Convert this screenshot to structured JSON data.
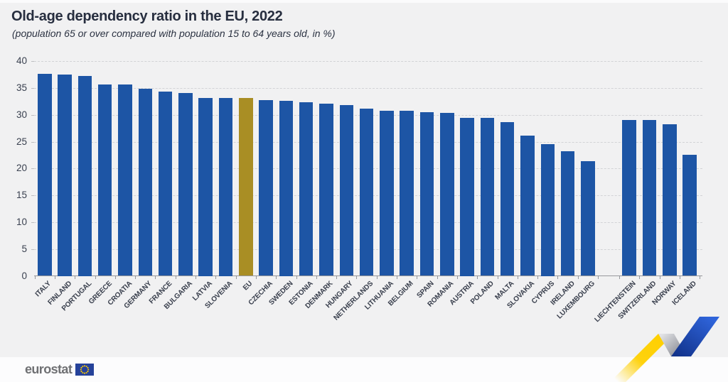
{
  "header": {
    "title": "Old-age dependency ratio in the EU, 2022",
    "subtitle": "(population 65 or over compared with population 15 to 64 years old, in %)"
  },
  "chart_data": {
    "type": "bar",
    "title": "Old-age dependency ratio in the EU, 2022",
    "subtitle": "(population 65 or over compared with population 15 to 64 years old, in %)",
    "unit": "%",
    "ylim": [
      0,
      40
    ],
    "yticks": [
      0,
      5,
      10,
      15,
      20,
      25,
      30,
      35,
      40
    ],
    "grid": "horizontal-dashed",
    "legend": "none",
    "bar_color": "#1d55a5",
    "highlight": {
      "category": "EU",
      "color": "#a98e24"
    },
    "layout": {
      "gap_after_index": 27
    },
    "categories": [
      "ITALY",
      "FINLAND",
      "PORTUGAL",
      "GREECE",
      "CROATIA",
      "GERMANY",
      "FRANCE",
      "BULGARIA",
      "LATVIA",
      "SLOVENIA",
      "EU",
      "CZECHIA",
      "SWEDEN",
      "ESTONIA",
      "DENMARK",
      "HUNGARY",
      "NETHERLANDS",
      "LITHUANIA",
      "BELGIUM",
      "SPAIN",
      "ROMANIA",
      "AUSTRIA",
      "POLAND",
      "MALTA",
      "SLOVAKIA",
      "CYPRUS",
      "IRELAND",
      "LUXEMBOURG",
      "LIECHTENSTEIN",
      "SWITZERLAND",
      "NORWAY",
      "ICELAND"
    ],
    "values": [
      37.6,
      37.5,
      37.3,
      35.7,
      35.6,
      34.9,
      34.3,
      34.1,
      33.2,
      33.2,
      33.1,
      32.7,
      32.6,
      32.3,
      32.1,
      31.8,
      31.2,
      30.8,
      30.7,
      30.5,
      30.4,
      29.5,
      29.4,
      28.6,
      26.1,
      24.6,
      23.2,
      21.4,
      29.0,
      29.0,
      28.2,
      22.6
    ]
  },
  "footer": {
    "logo_text": "eurostat"
  },
  "decor": {
    "background": "#f1f1f2",
    "footer_background": "#fcfcfd",
    "flag_blue": "#26429a",
    "star_yellow": "#ffcc00",
    "ribbon_yellow": "#ffd000",
    "ribbon_gray": "#9fa1a8",
    "ribbon_blue": "#2f64da"
  }
}
